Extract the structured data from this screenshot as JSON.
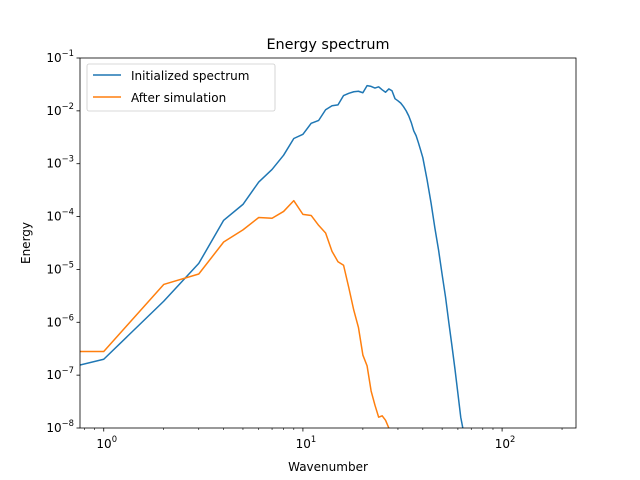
{
  "chart_data": {
    "type": "line",
    "title": "Energy spectrum",
    "xlabel": "Wavenumber",
    "ylabel": "Energy",
    "xscale": "log",
    "yscale": "log",
    "xlim": [
      0.76,
      235
    ],
    "ylim": [
      1e-08,
      0.1
    ],
    "grid": false,
    "legend_position": "top-left",
    "x_ticks": [
      {
        "base": "10",
        "exp": "0",
        "value": 1
      },
      {
        "base": "10",
        "exp": "1",
        "value": 10
      },
      {
        "base": "10",
        "exp": "2",
        "value": 100
      }
    ],
    "y_ticks": [
      {
        "base": "10",
        "exp": "−8",
        "value": 1e-08
      },
      {
        "base": "10",
        "exp": "−7",
        "value": 1e-07
      },
      {
        "base": "10",
        "exp": "−6",
        "value": 1e-06
      },
      {
        "base": "10",
        "exp": "−5",
        "value": 1e-05
      },
      {
        "base": "10",
        "exp": "−4",
        "value": 0.0001
      },
      {
        "base": "10",
        "exp": "−3",
        "value": 0.001
      },
      {
        "base": "10",
        "exp": "−2",
        "value": 0.01
      },
      {
        "base": "10",
        "exp": "−1",
        "value": 0.1
      }
    ],
    "series": [
      {
        "name": "Initialized spectrum",
        "color": "#1f77b4",
        "points": [
          [
            0.76,
            1.55e-07
          ],
          [
            1,
            2e-07
          ],
          [
            2,
            2.5e-06
          ],
          [
            3,
            1.3e-05
          ],
          [
            4,
            8.5e-05
          ],
          [
            5,
            0.00017
          ],
          [
            6,
            0.00045
          ],
          [
            7,
            0.00078
          ],
          [
            8,
            0.00145
          ],
          [
            9,
            0.003
          ],
          [
            10,
            0.0036
          ],
          [
            11,
            0.0058
          ],
          [
            12,
            0.0066
          ],
          [
            13,
            0.0105
          ],
          [
            14,
            0.0125
          ],
          [
            15,
            0.013
          ],
          [
            16,
            0.0195
          ],
          [
            17,
            0.0215
          ],
          [
            18,
            0.023
          ],
          [
            19,
            0.0235
          ],
          [
            20,
            0.022
          ],
          [
            21,
            0.03
          ],
          [
            22,
            0.029
          ],
          [
            23,
            0.027
          ],
          [
            24,
            0.0285
          ],
          [
            25,
            0.025
          ],
          [
            26,
            0.0225
          ],
          [
            27,
            0.026
          ],
          [
            28,
            0.024
          ],
          [
            29,
            0.017
          ],
          [
            30,
            0.0155
          ],
          [
            31,
            0.014
          ],
          [
            32,
            0.012
          ],
          [
            33,
            0.01
          ],
          [
            34,
            0.008
          ],
          [
            35,
            0.006
          ],
          [
            36,
            0.0042
          ],
          [
            37,
            0.0034
          ],
          [
            38,
            0.0025
          ],
          [
            39,
            0.0018
          ],
          [
            40,
            0.0013
          ],
          [
            42,
            0.0005
          ],
          [
            44,
            0.00018
          ],
          [
            46,
            6e-05
          ],
          [
            48,
            2.3e-05
          ],
          [
            50,
            8e-06
          ],
          [
            52,
            3e-06
          ],
          [
            54,
            1e-06
          ],
          [
            56,
            3.6e-07
          ],
          [
            58,
            1.3e-07
          ],
          [
            60,
            4.5e-08
          ],
          [
            62,
            1.6e-08
          ],
          [
            63.5,
            1e-08
          ]
        ]
      },
      {
        "name": "After simulation",
        "color": "#ff7f0e",
        "points": [
          [
            0.76,
            2.8e-07
          ],
          [
            1,
            2.8e-07
          ],
          [
            2,
            5.2e-06
          ],
          [
            3,
            8.2e-06
          ],
          [
            4,
            3.3e-05
          ],
          [
            5,
            5.6e-05
          ],
          [
            6,
            9.6e-05
          ],
          [
            7,
            9.3e-05
          ],
          [
            8,
            0.000125
          ],
          [
            9,
            0.0002
          ],
          [
            10,
            0.00011
          ],
          [
            11,
            0.000105
          ],
          [
            12,
            6.8e-05
          ],
          [
            13,
            4.9e-05
          ],
          [
            14,
            2.2e-05
          ],
          [
            15,
            1.4e-05
          ],
          [
            16,
            1.2e-05
          ],
          [
            17,
            4.5e-06
          ],
          [
            18,
            1.7e-06
          ],
          [
            19,
            8e-07
          ],
          [
            20,
            2.4e-07
          ],
          [
            21,
            1.5e-07
          ],
          [
            22,
            5e-08
          ],
          [
            23,
            2.7e-08
          ],
          [
            24,
            1.6e-08
          ],
          [
            25,
            1.7e-08
          ],
          [
            26,
            1.4e-08
          ],
          [
            27,
            1e-08
          ]
        ]
      }
    ]
  }
}
